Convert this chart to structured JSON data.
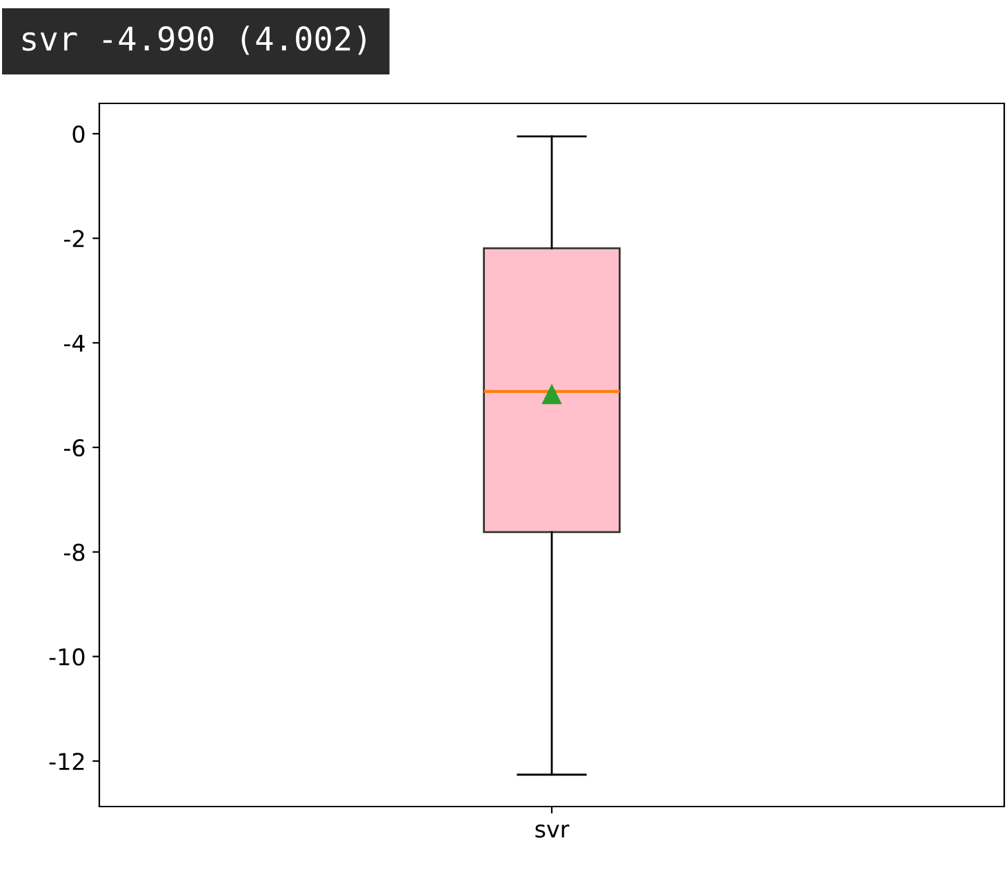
{
  "chart_data": {
    "type": "box",
    "title": "svr -4.990 (4.002)",
    "categories": [
      "svr"
    ],
    "boxes": [
      {
        "low": -12.26,
        "q1": -7.62,
        "median": -4.93,
        "q3": -2.19,
        "high": -0.05,
        "mean": -4.99
      }
    ],
    "color": "#ffc0cb",
    "ylim": [
      -12.87,
      0.58
    ],
    "yticks": [
      0,
      -2,
      -4,
      -6,
      -8,
      -10,
      -12
    ],
    "grid": false
  }
}
